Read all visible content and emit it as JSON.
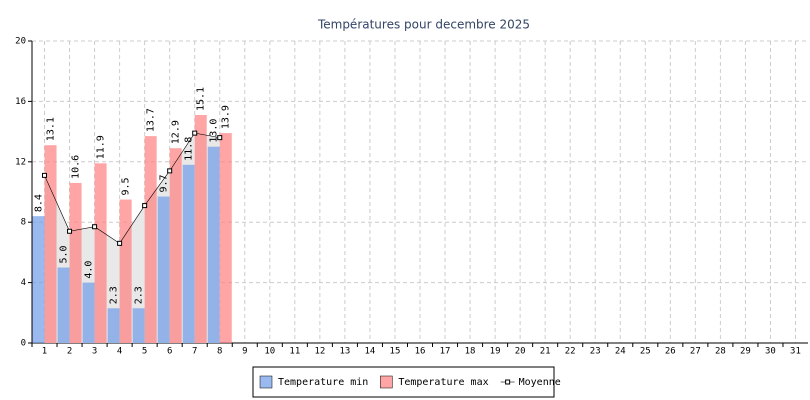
{
  "chart_data": {
    "type": "bar",
    "title": "Températures pour decembre 2025",
    "categories": [
      "1",
      "2",
      "3",
      "4",
      "5",
      "6",
      "7",
      "8",
      "9",
      "10",
      "11",
      "12",
      "13",
      "14",
      "15",
      "16",
      "17",
      "18",
      "19",
      "20",
      "21",
      "22",
      "23",
      "24",
      "25",
      "26",
      "27",
      "28",
      "29",
      "30",
      "31"
    ],
    "series": [
      {
        "name": "Temperature min",
        "color": "#6f9be8",
        "values": [
          8.4,
          5.0,
          4.0,
          2.3,
          2.3,
          9.7,
          11.8,
          13.0,
          null,
          null,
          null,
          null,
          null,
          null,
          null,
          null,
          null,
          null,
          null,
          null,
          null,
          null,
          null,
          null,
          null,
          null,
          null,
          null,
          null,
          null,
          null
        ],
        "value_labels": [
          "8.4",
          "5.0",
          "4.0",
          "2.3",
          "2.3",
          "9.7",
          "11.8",
          "13.0",
          null,
          null,
          null,
          null,
          null,
          null,
          null,
          null,
          null,
          null,
          null,
          null,
          null,
          null,
          null,
          null,
          null,
          null,
          null,
          null,
          null,
          null,
          null
        ]
      },
      {
        "name": "Temperature max",
        "color": "#ff7f7f",
        "values": [
          13.1,
          10.6,
          11.9,
          9.5,
          13.7,
          12.9,
          15.1,
          13.9,
          null,
          null,
          null,
          null,
          null,
          null,
          null,
          null,
          null,
          null,
          null,
          null,
          null,
          null,
          null,
          null,
          null,
          null,
          null,
          null,
          null,
          null,
          null
        ],
        "value_labels": [
          "13.1",
          "10.6",
          "11.9",
          "9.5",
          "13.7",
          "12.9",
          "15.1",
          "13.9",
          null,
          null,
          null,
          null,
          null,
          null,
          null,
          null,
          null,
          null,
          null,
          null,
          null,
          null,
          null,
          null,
          null,
          null,
          null,
          null,
          null,
          null,
          null
        ]
      },
      {
        "name": "Moyenne",
        "type": "line",
        "color": "#000000",
        "values": [
          11.1,
          7.4,
          7.7,
          6.6,
          9.1,
          11.4,
          13.9,
          13.6,
          null,
          null,
          null,
          null,
          null,
          null,
          null,
          null,
          null,
          null,
          null,
          null,
          null,
          null,
          null,
          null,
          null,
          null,
          null,
          null,
          null,
          null,
          null
        ]
      }
    ],
    "ylim": [
      0,
      20
    ],
    "yticks": [
      0,
      4,
      8,
      12,
      16,
      20
    ],
    "grid": true,
    "legend": "bottom"
  }
}
